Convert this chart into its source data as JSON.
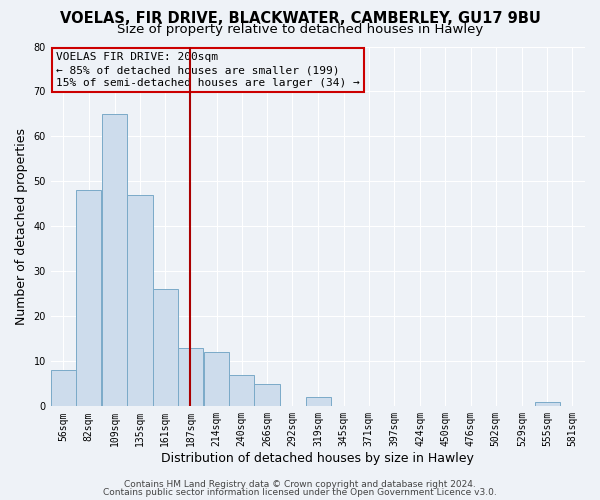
{
  "title": "VOELAS, FIR DRIVE, BLACKWATER, CAMBERLEY, GU17 9BU",
  "subtitle": "Size of property relative to detached houses in Hawley",
  "xlabel": "Distribution of detached houses by size in Hawley",
  "ylabel": "Number of detached properties",
  "footer_line1": "Contains HM Land Registry data © Crown copyright and database right 2024.",
  "footer_line2": "Contains public sector information licensed under the Open Government Licence v3.0.",
  "bin_labels": [
    "56sqm",
    "82sqm",
    "109sqm",
    "135sqm",
    "161sqm",
    "187sqm",
    "214sqm",
    "240sqm",
    "266sqm",
    "292sqm",
    "319sqm",
    "345sqm",
    "371sqm",
    "397sqm",
    "424sqm",
    "450sqm",
    "476sqm",
    "502sqm",
    "529sqm",
    "555sqm",
    "581sqm"
  ],
  "bin_edges_vals": [
    56,
    82,
    109,
    135,
    161,
    187,
    214,
    240,
    266,
    292,
    319,
    345,
    371,
    397,
    424,
    450,
    476,
    502,
    529,
    555,
    581
  ],
  "bar_values": [
    8,
    48,
    65,
    47,
    26,
    13,
    12,
    7,
    5,
    0,
    2,
    0,
    0,
    0,
    0,
    0,
    0,
    0,
    0,
    1,
    0
  ],
  "bar_color": "#cddcec",
  "bar_edgecolor": "#7aaac8",
  "vline_x": 200,
  "vline_color": "#aa0000",
  "annotation_line1": "VOELAS FIR DRIVE: 200sqm",
  "annotation_line2": "← 85% of detached houses are smaller (199)",
  "annotation_line3": "15% of semi-detached houses are larger (34) →",
  "annotation_box_edgecolor": "#cc0000",
  "ylim": [
    0,
    80
  ],
  "yticks": [
    0,
    10,
    20,
    30,
    40,
    50,
    60,
    70,
    80
  ],
  "background_color": "#eef2f7",
  "grid_color": "#ffffff",
  "title_fontsize": 10.5,
  "subtitle_fontsize": 9.5,
  "axis_label_fontsize": 9,
  "tick_fontsize": 7,
  "annotation_fontsize": 8,
  "footer_fontsize": 6.5
}
